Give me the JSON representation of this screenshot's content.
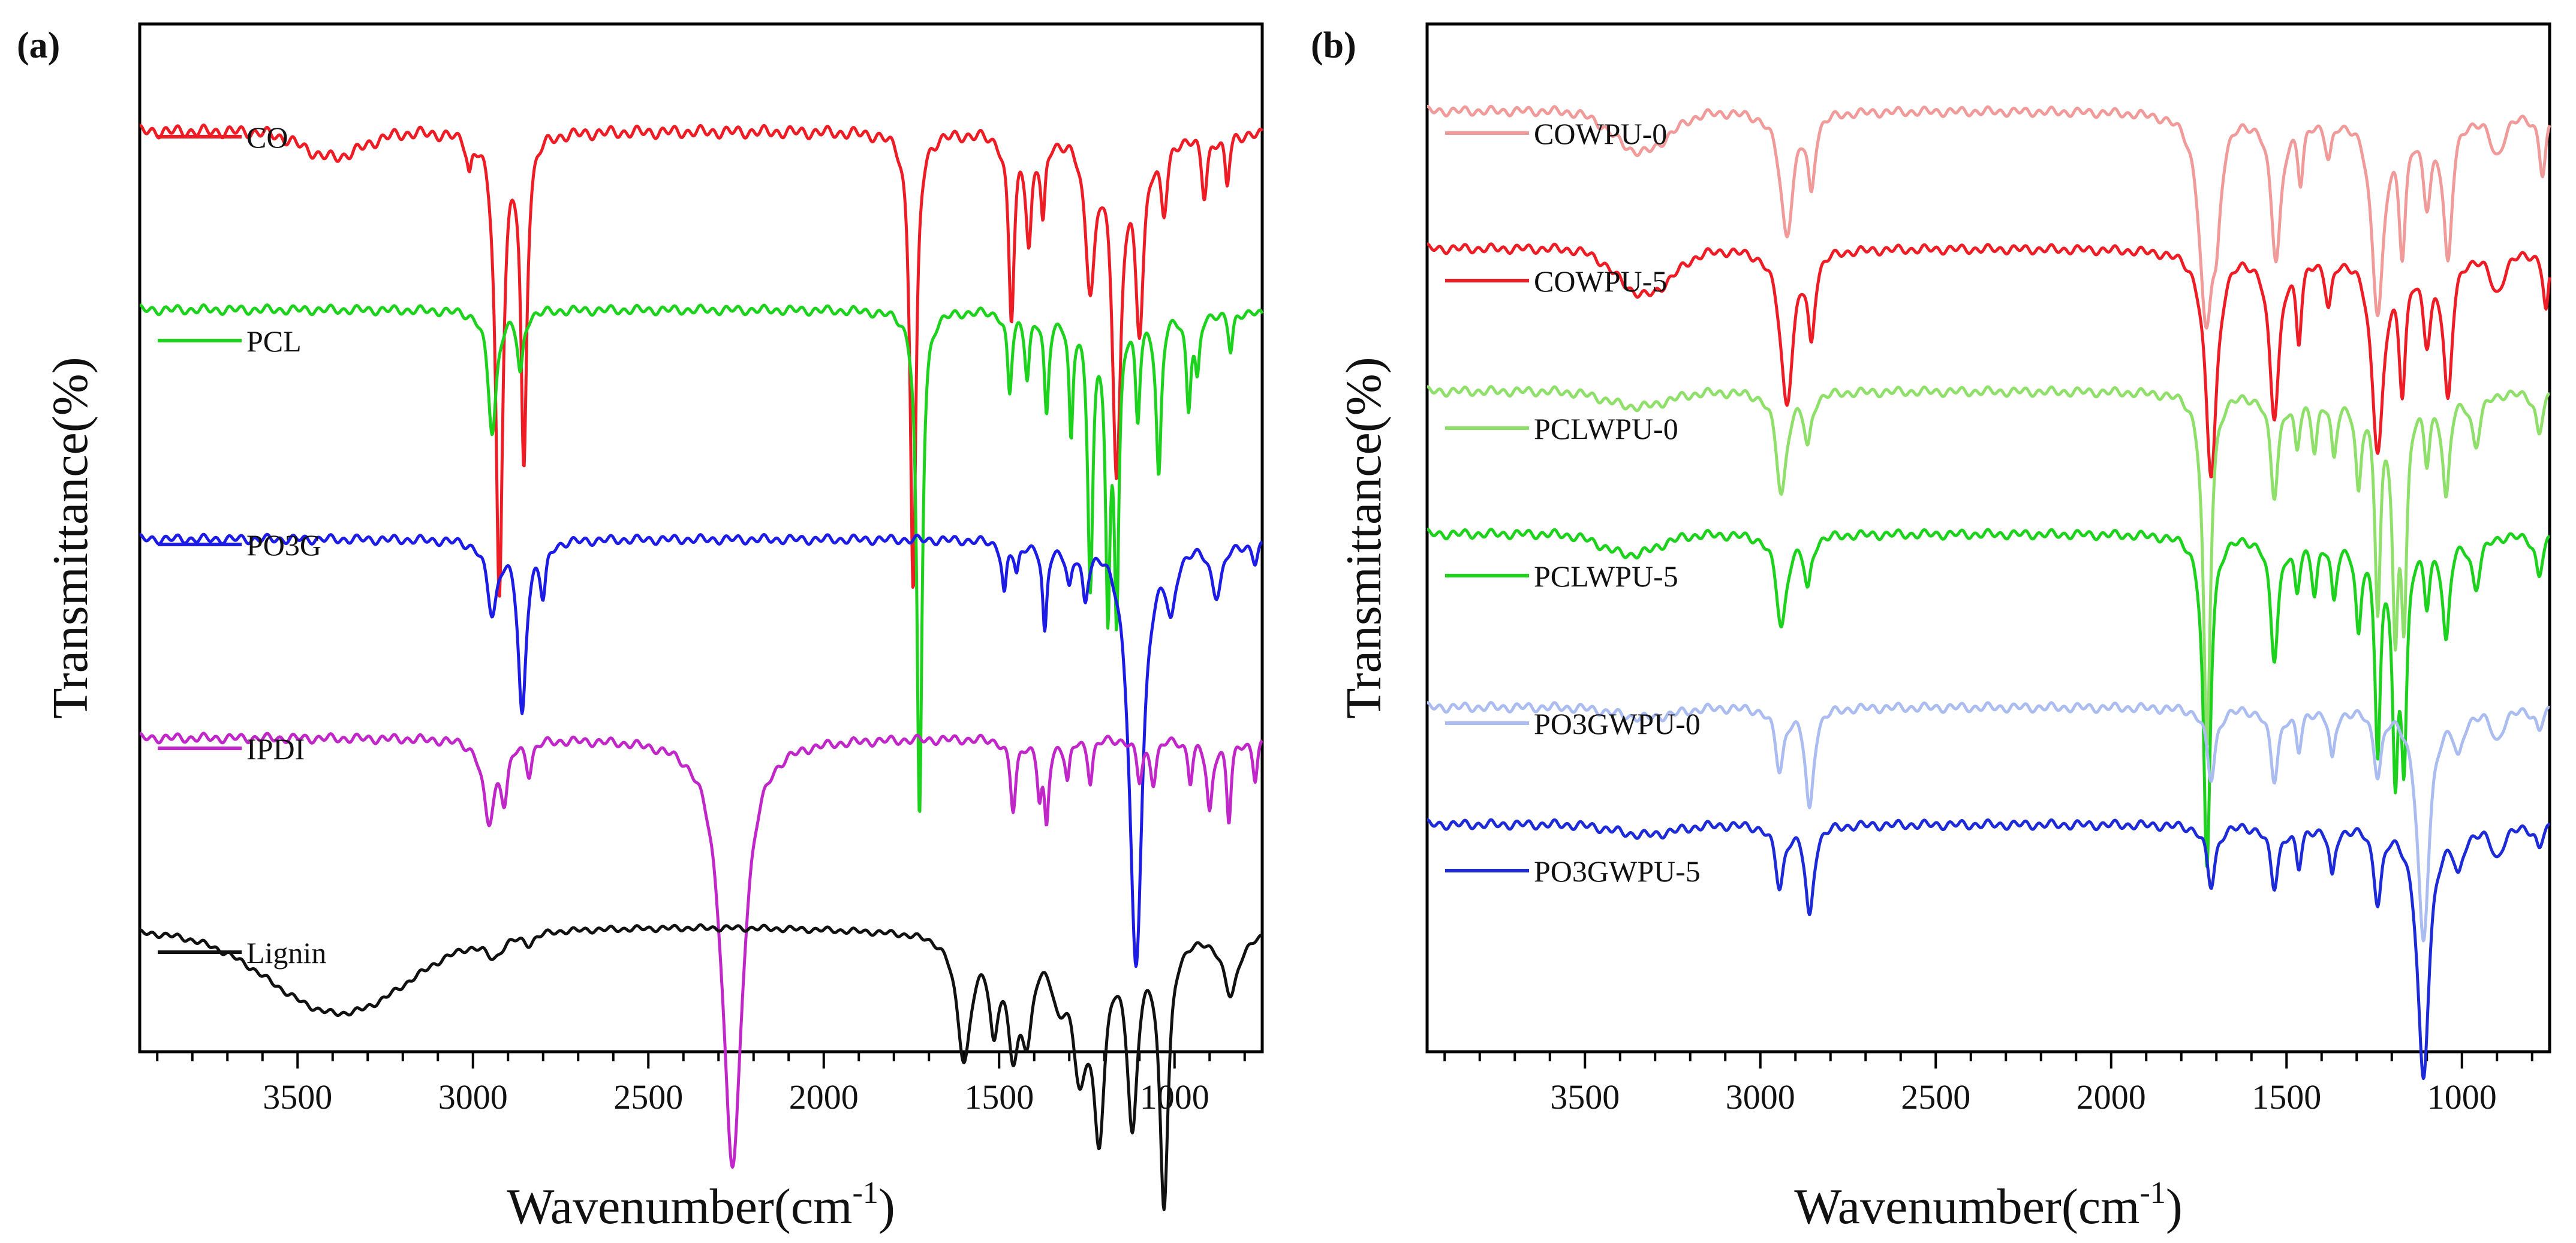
{
  "chart_data": [
    {
      "type": "line",
      "panel_label": "(a)",
      "xlabel": "Wavenumber(cm",
      "xlabel_sup": "-1",
      "xlabel_close": ")",
      "ylabel": "Transmittance(%)",
      "xlim": [
        3950,
        750
      ],
      "x_ticks": [
        3500,
        3000,
        2500,
        2000,
        1500,
        1000
      ],
      "x_tick_labels": [
        "3500",
        "3000",
        "2500",
        "2000",
        "1500",
        "1000"
      ],
      "grid": false,
      "series": [
        {
          "name": "CO",
          "color": "#ee1c24",
          "baseline": 0.07,
          "noise": 0.004,
          "broad": [
            [
              3400,
              0.025,
              120
            ]
          ],
          "peaks": [
            [
              3010,
              0.03,
              8
            ],
            [
              2925,
              0.45,
              12
            ],
            [
              2855,
              0.32,
              10
            ],
            [
              1745,
              0.45,
              10
            ],
            [
              1465,
              0.18,
              10
            ],
            [
              1415,
              0.1,
              10
            ],
            [
              1375,
              0.08,
              8
            ],
            [
              1240,
              0.14,
              18
            ],
            [
              1165,
              0.32,
              15
            ],
            [
              1100,
              0.18,
              15
            ],
            [
              1030,
              0.07,
              12
            ],
            [
              915,
              0.06,
              10
            ],
            [
              850,
              0.05,
              8
            ],
            [
              725,
              0.06,
              6
            ]
          ]
        },
        {
          "name": "PCL",
          "color": "#1cd21c",
          "baseline": 0.245,
          "noise": 0.003,
          "peaks": [
            [
              2945,
              0.12,
              15
            ],
            [
              2865,
              0.06,
              10
            ],
            [
              1727,
              0.5,
              9
            ],
            [
              1470,
              0.08,
              8
            ],
            [
              1420,
              0.06,
              8
            ],
            [
              1365,
              0.1,
              8
            ],
            [
              1295,
              0.12,
              7
            ],
            [
              1240,
              0.26,
              9
            ],
            [
              1190,
              0.28,
              8
            ],
            [
              1165,
              0.28,
              8
            ],
            [
              1105,
              0.1,
              8
            ],
            [
              1045,
              0.16,
              9
            ],
            [
              960,
              0.09,
              8
            ],
            [
              935,
              0.06,
              8
            ],
            [
              840,
              0.04,
              8
            ],
            [
              735,
              0.03,
              8
            ]
          ]
        },
        {
          "name": "PO3G",
          "color": "#1c1ce6",
          "baseline": 0.47,
          "noise": 0.003,
          "peaks": [
            [
              2945,
              0.07,
              18
            ],
            [
              2860,
              0.17,
              14
            ],
            [
              2800,
              0.05,
              10
            ],
            [
              1485,
              0.05,
              8
            ],
            [
              1450,
              0.03,
              8
            ],
            [
              1370,
              0.09,
              8
            ],
            [
              1300,
              0.04,
              10
            ],
            [
              1255,
              0.05,
              10
            ],
            [
              1110,
              0.42,
              22
            ],
            [
              1010,
              0.06,
              15
            ],
            [
              880,
              0.05,
              20
            ],
            [
              770,
              0.02,
              10
            ]
          ]
        },
        {
          "name": "IPDI",
          "color": "#c026c8",
          "baseline": 0.665,
          "noise": 0.003,
          "peaks": [
            [
              2955,
              0.08,
              20
            ],
            [
              2910,
              0.05,
              12
            ],
            [
              2840,
              0.03,
              10
            ],
            [
              2260,
              0.42,
              35
            ],
            [
              1460,
              0.07,
              10
            ],
            [
              1385,
              0.05,
              8
            ],
            [
              1365,
              0.08,
              8
            ],
            [
              1305,
              0.04,
              8
            ],
            [
              1240,
              0.04,
              8
            ],
            [
              1100,
              0.04,
              10
            ],
            [
              1060,
              0.04,
              10
            ],
            [
              955,
              0.04,
              8
            ],
            [
              900,
              0.07,
              10
            ],
            [
              845,
              0.08,
              8
            ],
            [
              770,
              0.04,
              8
            ]
          ]
        },
        {
          "name": "Lignin",
          "color": "#111111",
          "baseline": 0.855,
          "noise": 0.002,
          "broad": [
            [
              3380,
              0.08,
              280
            ],
            [
              2300,
              -0.004,
              500
            ]
          ],
          "peaks": [
            [
              2940,
              0.02,
              30
            ],
            [
              2840,
              0.01,
              20
            ],
            [
              1600,
              0.12,
              25
            ],
            [
              1515,
              0.08,
              15
            ],
            [
              1460,
              0.1,
              20
            ],
            [
              1420,
              0.08,
              20
            ],
            [
              1330,
              0.05,
              25
            ],
            [
              1270,
              0.12,
              25
            ],
            [
              1215,
              0.18,
              20
            ],
            [
              1120,
              0.18,
              18
            ],
            [
              1030,
              0.26,
              15
            ],
            [
              840,
              0.06,
              25
            ]
          ]
        }
      ]
    },
    {
      "type": "line",
      "panel_label": "(b)",
      "xlabel": "Wavenumber(cm",
      "xlabel_sup": "-1",
      "xlabel_close": ")",
      "ylabel": "Transmittance(%)",
      "xlim": [
        3950,
        750
      ],
      "x_ticks": [
        3500,
        3000,
        2500,
        2000,
        1500,
        1000
      ],
      "x_tick_labels": [
        "3500",
        "3000",
        "2500",
        "2000",
        "1500",
        "1000"
      ],
      "grid": false,
      "series": [
        {
          "name": "COWPU-0",
          "color": "#f09a9a",
          "baseline": 0.05,
          "noise": 0.003,
          "broad": [
            [
              3340,
              0.04,
              110
            ]
          ],
          "peaks": [
            [
              2925,
              0.12,
              22
            ],
            [
              2855,
              0.07,
              12
            ],
            [
              1730,
              0.2,
              22
            ],
            [
              1700,
              0.08,
              14
            ],
            [
              1530,
              0.14,
              18
            ],
            [
              1460,
              0.06,
              10
            ],
            [
              1380,
              0.04,
              12
            ],
            [
              1240,
              0.19,
              22
            ],
            [
              1170,
              0.12,
              12
            ],
            [
              1100,
              0.08,
              15
            ],
            [
              1040,
              0.14,
              15
            ],
            [
              900,
              0.04,
              25
            ],
            [
              770,
              0.06,
              12
            ]
          ]
        },
        {
          "name": "COWPU-5",
          "color": "#ee1c24",
          "baseline": 0.185,
          "noise": 0.003,
          "broad": [
            [
              3330,
              0.045,
              110
            ]
          ],
          "peaks": [
            [
              2925,
              0.15,
              22
            ],
            [
              2855,
              0.08,
              12
            ],
            [
              1715,
              0.22,
              20
            ],
            [
              1535,
              0.16,
              18
            ],
            [
              1465,
              0.08,
              10
            ],
            [
              1380,
              0.05,
              12
            ],
            [
              1240,
              0.19,
              22
            ],
            [
              1170,
              0.12,
              12
            ],
            [
              1100,
              0.08,
              15
            ],
            [
              1040,
              0.14,
              15
            ],
            [
              900,
              0.04,
              25
            ],
            [
              760,
              0.06,
              10
            ]
          ]
        },
        {
          "name": "PCLWPU-0",
          "color": "#8fe06a",
          "baseline": 0.325,
          "noise": 0.003,
          "broad": [
            [
              3350,
              0.015,
              120
            ]
          ],
          "peaks": [
            [
              2940,
              0.1,
              18
            ],
            [
              2865,
              0.05,
              12
            ],
            [
              1727,
              0.35,
              12
            ],
            [
              1535,
              0.1,
              14
            ],
            [
              1470,
              0.05,
              10
            ],
            [
              1420,
              0.05,
              10
            ],
            [
              1365,
              0.06,
              10
            ],
            [
              1295,
              0.09,
              10
            ],
            [
              1240,
              0.2,
              10
            ],
            [
              1190,
              0.22,
              10
            ],
            [
              1165,
              0.2,
              10
            ],
            [
              1100,
              0.06,
              10
            ],
            [
              1045,
              0.1,
              12
            ],
            [
              960,
              0.05,
              15
            ],
            [
              780,
              0.04,
              12
            ]
          ]
        },
        {
          "name": "PCLWPU-5",
          "color": "#1cd21c",
          "baseline": 0.465,
          "noise": 0.003,
          "broad": [
            [
              3370,
              0.02,
              110
            ]
          ],
          "peaks": [
            [
              2940,
              0.09,
              18
            ],
            [
              2865,
              0.05,
              12
            ],
            [
              1727,
              0.33,
              12
            ],
            [
              1535,
              0.12,
              14
            ],
            [
              1470,
              0.05,
              10
            ],
            [
              1420,
              0.05,
              10
            ],
            [
              1365,
              0.06,
              10
            ],
            [
              1295,
              0.09,
              10
            ],
            [
              1240,
              0.2,
              10
            ],
            [
              1190,
              0.22,
              10
            ],
            [
              1165,
              0.2,
              10
            ],
            [
              1100,
              0.06,
              10
            ],
            [
              1045,
              0.1,
              12
            ],
            [
              960,
              0.05,
              15
            ],
            [
              780,
              0.04,
              12
            ]
          ]
        },
        {
          "name": "PO3GWPU-0",
          "color": "#aabcf0",
          "baseline": 0.635,
          "noise": 0.003,
          "broad": [
            [
              3330,
              0.01,
              120
            ]
          ],
          "peaks": [
            [
              2945,
              0.06,
              15
            ],
            [
              2860,
              0.1,
              14
            ],
            [
              1715,
              0.07,
              15
            ],
            [
              1535,
              0.07,
              14
            ],
            [
              1465,
              0.04,
              10
            ],
            [
              1370,
              0.05,
              10
            ],
            [
              1240,
              0.06,
              14
            ],
            [
              1110,
              0.23,
              20
            ],
            [
              1010,
              0.04,
              15
            ],
            [
              900,
              0.03,
              20
            ],
            [
              780,
              0.02,
              12
            ]
          ]
        },
        {
          "name": "PO3GWPU-5",
          "color": "#1c2ad8",
          "baseline": 0.75,
          "noise": 0.003,
          "broad": [
            [
              3330,
              0.01,
              120
            ]
          ],
          "peaks": [
            [
              2945,
              0.06,
              15
            ],
            [
              2860,
              0.09,
              14
            ],
            [
              1715,
              0.06,
              15
            ],
            [
              1535,
              0.06,
              14
            ],
            [
              1465,
              0.04,
              10
            ],
            [
              1370,
              0.05,
              10
            ],
            [
              1240,
              0.07,
              14
            ],
            [
              1110,
              0.25,
              20
            ],
            [
              1010,
              0.04,
              15
            ],
            [
              900,
              0.03,
              20
            ],
            [
              780,
              0.02,
              12
            ]
          ]
        }
      ]
    }
  ]
}
